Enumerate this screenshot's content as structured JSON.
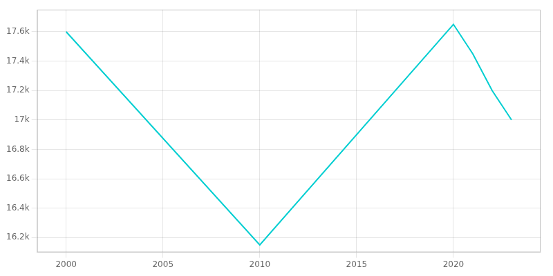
{
  "chart_data": {
    "type": "line",
    "x": [
      2000,
      2010,
      2020,
      2021,
      2022,
      2023
    ],
    "values": [
      17600,
      16150,
      17650,
      17450,
      17200,
      17000
    ],
    "color": "#00CED1",
    "xlim": [
      1998.5,
      2024.5
    ],
    "xticks": [
      2000,
      2005,
      2010,
      2015,
      2020
    ],
    "ylim": [
      16100,
      17750
    ],
    "yticks": [
      {
        "value": 16200,
        "label": "16.2k"
      },
      {
        "value": 16400,
        "label": "16.4k"
      },
      {
        "value": 16600,
        "label": "16.6k"
      },
      {
        "value": 16800,
        "label": "16.8k"
      },
      {
        "value": 17000,
        "label": "17k"
      },
      {
        "value": 17200,
        "label": "17.2k"
      },
      {
        "value": 17400,
        "label": "17.4k"
      },
      {
        "value": 17600,
        "label": "17.6k"
      }
    ],
    "grid": true
  }
}
